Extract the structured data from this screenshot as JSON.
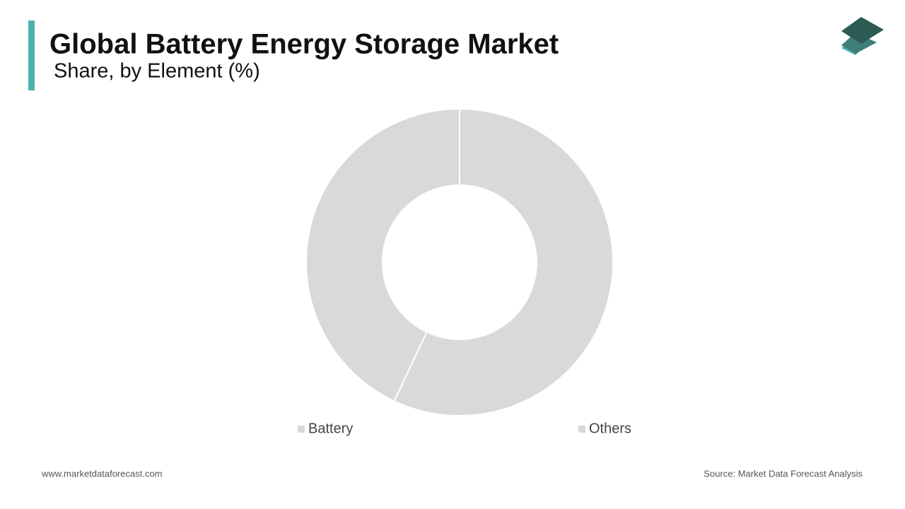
{
  "chart_data": {
    "type": "pie",
    "title": "Global Battery Energy Storage Market",
    "subtitle": "Share, by Element (%)",
    "categories": [
      "Battery",
      "Others"
    ],
    "values": [
      57,
      43
    ],
    "colors": [
      "#d9d9d9",
      "#d9d9d9"
    ]
  },
  "footer": {
    "website": "www.marketdataforecast.com",
    "source": "Source: Market Data Forecast Analysis"
  }
}
